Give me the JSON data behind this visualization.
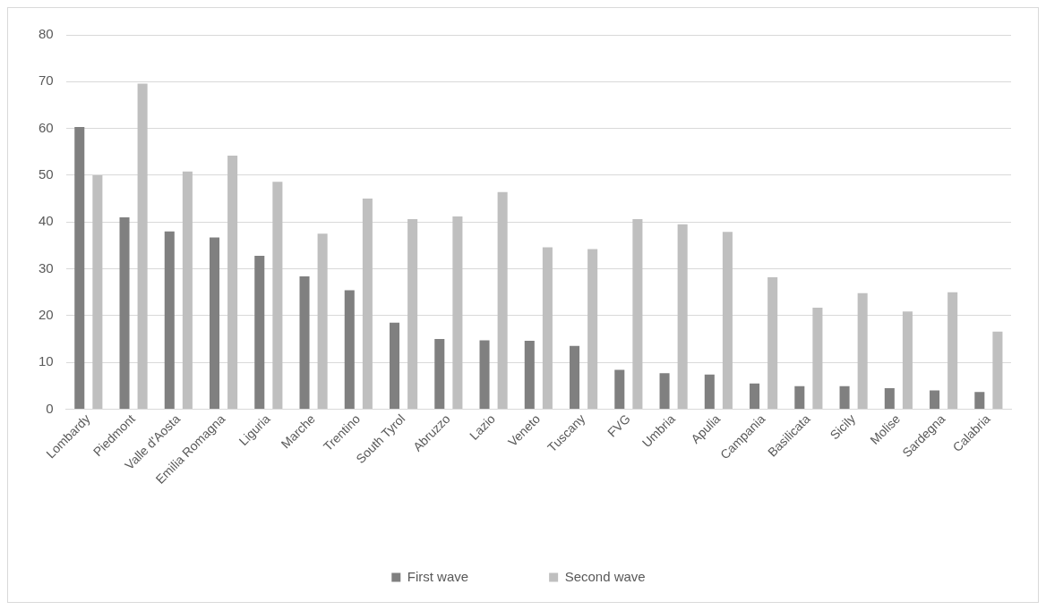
{
  "chart_data": {
    "type": "bar",
    "categories": [
      "Lombardy",
      "Piedmont",
      "Valle d'Aosta",
      "Emilia Romagna",
      "Liguria",
      "Marche",
      "Trentino",
      "South Tyrol",
      "Abruzzo",
      "Lazio",
      "Veneto",
      "Tuscany",
      "FVG",
      "Umbria",
      "Apulia",
      "Campania",
      "Basilicata",
      "Sicily",
      "Molise",
      "Sardegna",
      "Calabria"
    ],
    "series": [
      {
        "name": "First wave",
        "color": "#808080",
        "values": [
          60.3,
          41,
          38,
          36.7,
          32.8,
          28.4,
          25.4,
          18.5,
          15,
          14.7,
          14.6,
          13.5,
          8.4,
          7.7,
          7.4,
          5.5,
          4.9,
          4.9,
          4.5,
          4,
          3.7
        ]
      },
      {
        "name": "Second wave",
        "color": "#bfbfbf",
        "values": [
          50,
          69.6,
          50.8,
          54.2,
          48.6,
          37.5,
          45,
          40.6,
          41.2,
          46.4,
          34.6,
          34.2,
          40.6,
          39.5,
          37.9,
          28.2,
          21.7,
          24.8,
          20.9,
          25,
          16.6
        ]
      }
    ],
    "ylim": [
      0,
      80
    ],
    "yticks": [
      0,
      10,
      20,
      30,
      40,
      50,
      60,
      70,
      80
    ],
    "grid": "y",
    "legend": "bottom"
  }
}
